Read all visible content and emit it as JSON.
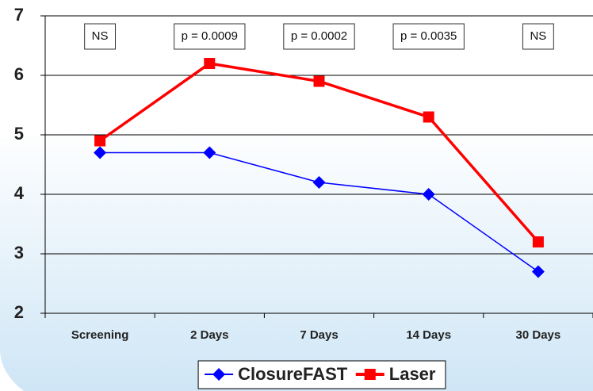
{
  "chart_data": {
    "type": "line",
    "categories": [
      "Screening",
      "2 Days",
      "7 Days",
      "14 Days",
      "30 Days"
    ],
    "series": [
      {
        "name": "ClosureFAST",
        "color": "#0000ff",
        "marker": "diamond",
        "values": [
          4.7,
          4.7,
          4.2,
          4.0,
          2.7
        ]
      },
      {
        "name": "Laser",
        "color": "#ff0000",
        "marker": "square",
        "values": [
          4.9,
          6.2,
          5.9,
          5.3,
          3.2
        ]
      }
    ],
    "annotations": [
      "NS",
      "p = 0.0009",
      "p = 0.0002",
      "p = 0.0035",
      "NS"
    ],
    "ylim": [
      2,
      7
    ],
    "yticks": [
      2,
      3,
      4,
      5,
      6,
      7
    ],
    "grid": true,
    "legend": "bottom"
  }
}
